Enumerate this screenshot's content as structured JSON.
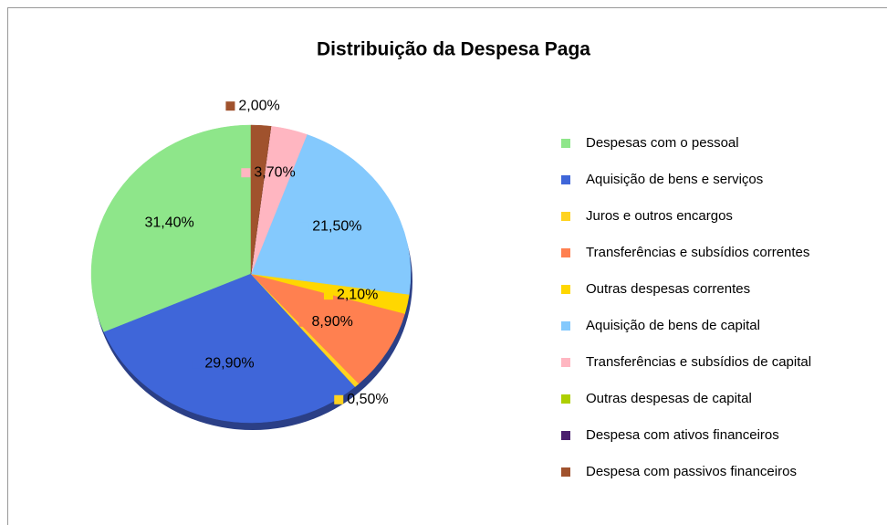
{
  "chart_data": {
    "type": "pie",
    "title": "Distribuição da Despesa Paga",
    "categories": [
      "Despesas com o pessoal",
      "Aquisição de bens e serviços",
      "Juros e outros encargos",
      "Transferências e subsídios correntes",
      "Outras despesas correntes",
      "Aquisição de bens de capital",
      "Transferências e subsídios de capital",
      "Outras despesas de capital",
      "Despesa com ativos financeiros",
      "Despesa com passivos financeiros"
    ],
    "values": [
      31.4,
      29.9,
      0.5,
      8.9,
      2.1,
      21.5,
      3.7,
      0,
      0,
      2.0
    ],
    "value_labels": [
      "31,40%",
      "29,90%",
      "0,50%",
      "8,90%",
      "2,10%",
      "21,50%",
      "3,70%",
      null,
      null,
      "2,00%"
    ],
    "colors": [
      "#8ee68a",
      "#3f66d9",
      "#ffd320",
      "#ff8050",
      "#ffd700",
      "#84c9fd",
      "#ffb6c1",
      "#aecf00",
      "#4b1f6f",
      "#a0522d"
    ],
    "legend": "right"
  }
}
